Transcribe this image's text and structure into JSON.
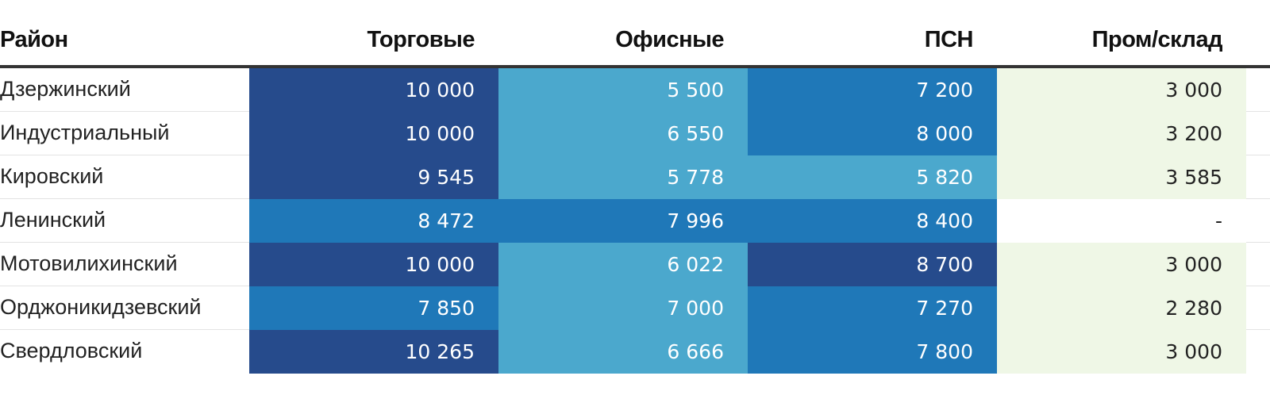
{
  "chart_data": {
    "type": "table",
    "columns": [
      "Район",
      "Торговые",
      "Офисные",
      "ПСН",
      "Пром/склад"
    ],
    "rows": [
      {
        "district": "Дзержинский",
        "values": [
          "10 000",
          "5 500",
          "7 200",
          "3 000"
        ],
        "numeric": [
          10000,
          5500,
          7200,
          3000
        ]
      },
      {
        "district": "Индустриальный",
        "values": [
          "10 000",
          "6 550",
          "8 000",
          "3 200"
        ],
        "numeric": [
          10000,
          6550,
          8000,
          3200
        ]
      },
      {
        "district": "Кировский",
        "values": [
          "9 545",
          "5 778",
          "5 820",
          "3 585"
        ],
        "numeric": [
          9545,
          5778,
          5820,
          3585
        ]
      },
      {
        "district": "Ленинский",
        "values": [
          "8 472",
          "7 996",
          "8 400",
          "-"
        ],
        "numeric": [
          8472,
          7996,
          8400,
          null
        ]
      },
      {
        "district": "Мотовилихинский",
        "values": [
          "10 000",
          "6 022",
          "8 700",
          "3 000"
        ],
        "numeric": [
          10000,
          6022,
          8700,
          3000
        ]
      },
      {
        "district": "Орджоникидзевский",
        "values": [
          "7 850",
          "7 000",
          "7 270",
          "2 280"
        ],
        "numeric": [
          7850,
          7000,
          7270,
          2280
        ]
      },
      {
        "district": "Свердловский",
        "values": [
          "10 265",
          "6 666",
          "7 800",
          "3 000"
        ],
        "numeric": [
          10265,
          6666,
          7800,
          3000
        ]
      }
    ],
    "color_scale": [
      {
        "min": 0,
        "max": 0,
        "color": "#ffffff"
      },
      {
        "min": 1,
        "max": 3999,
        "color": "#eff7e6"
      },
      {
        "min": 4000,
        "max": 7199,
        "color": "#4ba8cd"
      },
      {
        "min": 7200,
        "max": 8600,
        "color": "#1f78b8"
      },
      {
        "min": 8601,
        "max": 99999,
        "color": "#264b8c"
      }
    ]
  }
}
